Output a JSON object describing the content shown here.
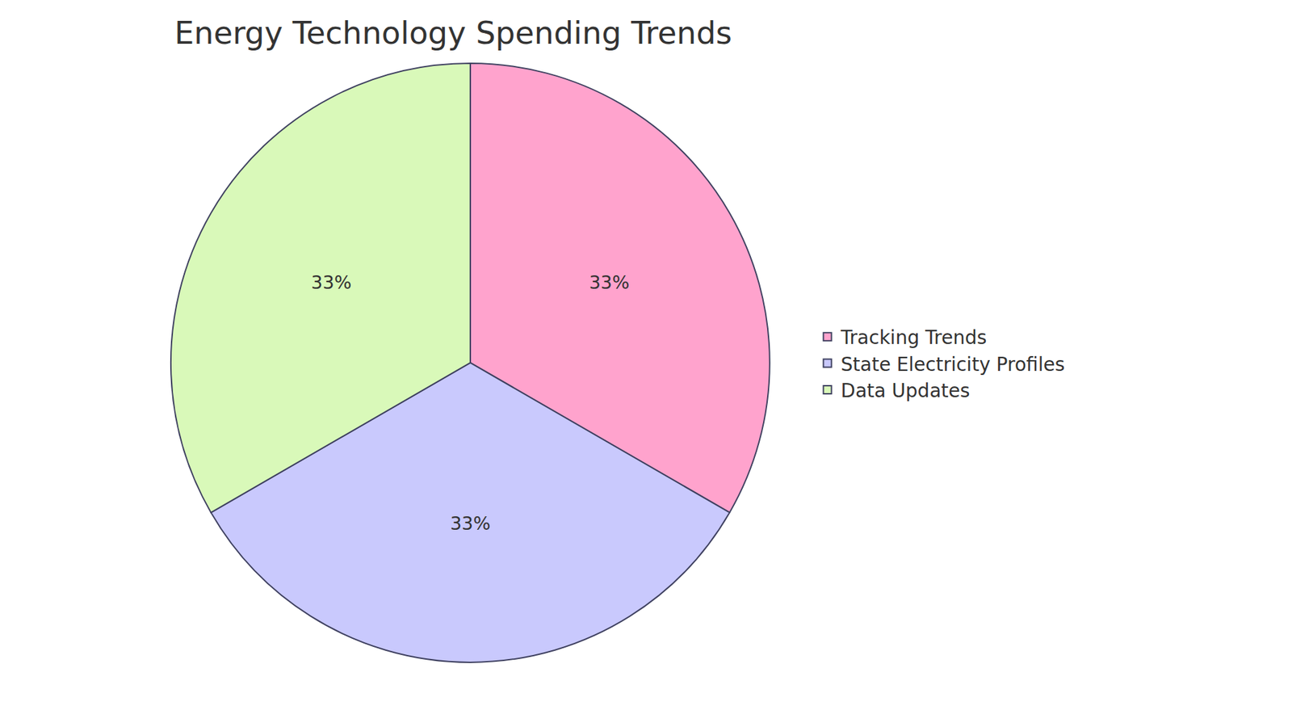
{
  "chart_data": {
    "type": "pie",
    "title": "Energy Technology Spending Trends",
    "categories": [
      "Tracking Trends",
      "State Electricity Profiles",
      "Data Updates"
    ],
    "values": [
      33,
      33,
      33
    ],
    "value_labels": [
      "33%",
      "33%",
      "33%"
    ],
    "colors": [
      "#ffa3cd",
      "#c9c9fd",
      "#d9f9b9"
    ],
    "data_labels": true,
    "legend": "right"
  }
}
